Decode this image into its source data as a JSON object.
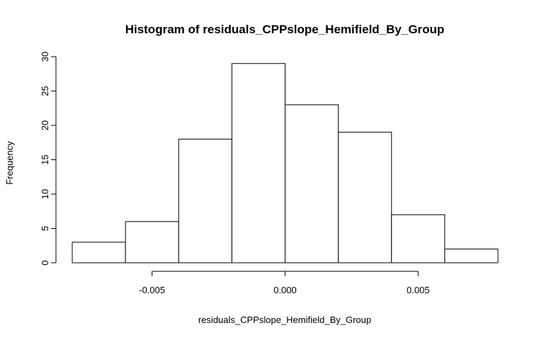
{
  "chart_data": {
    "type": "bar",
    "title": "Histogram of residuals_CPPslope_Hemifield_By_Group",
    "xlabel": "residuals_CPPslope_Hemifield_By_Group",
    "ylabel": "Frequency",
    "bin_edges": [
      -0.008,
      -0.006,
      -0.004,
      -0.002,
      0.0,
      0.002,
      0.004,
      0.006,
      0.008
    ],
    "values": [
      3,
      6,
      18,
      29,
      23,
      19,
      7,
      2
    ],
    "xticks": [
      -0.005,
      0.0,
      0.005
    ],
    "xtick_labels": [
      "-0.005",
      "0.000",
      "0.005"
    ],
    "yticks": [
      0,
      5,
      10,
      15,
      20,
      25,
      30
    ],
    "ytick_labels": [
      "0",
      "5",
      "10",
      "15",
      "20",
      "25",
      "30"
    ],
    "ylim": [
      0,
      30
    ],
    "bar_fill": "#ffffff",
    "bar_stroke": "#000000",
    "grid": false,
    "legend": "none"
  }
}
